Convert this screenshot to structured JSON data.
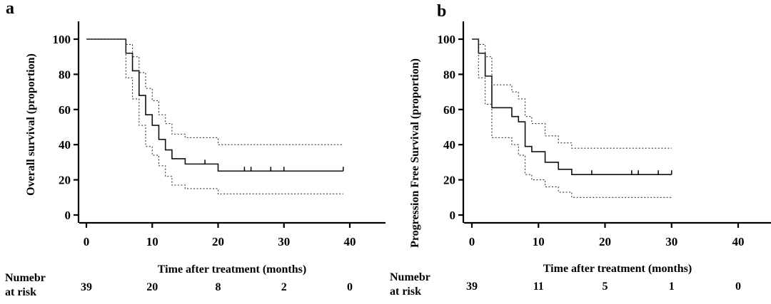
{
  "chart_data": [
    {
      "panel": "a",
      "type": "line",
      "ylabel": "Overall survival (proportion)",
      "xlabel": "Time after treatment (months)",
      "xlim": [
        0,
        40
      ],
      "ylim": [
        0,
        100
      ],
      "xticks": [
        0,
        10,
        20,
        30,
        40
      ],
      "yticks": [
        0,
        20,
        40,
        60,
        80,
        100
      ],
      "grid": false,
      "series": [
        {
          "role": "estimate",
          "x": [
            0,
            6,
            7,
            8,
            9,
            10,
            11,
            12,
            13,
            15,
            20,
            39
          ],
          "y": [
            100,
            92,
            82,
            68,
            57,
            51,
            43,
            37,
            32,
            29,
            25,
            25
          ],
          "censored_x": [
            18,
            24,
            25,
            28,
            30,
            39
          ]
        },
        {
          "role": "upper_ci",
          "x": [
            0,
            6,
            7,
            8,
            9,
            10,
            11,
            12,
            13,
            15,
            20,
            39
          ],
          "y": [
            100,
            97,
            90,
            81,
            72,
            65,
            57,
            52,
            46,
            44,
            40,
            40
          ]
        },
        {
          "role": "lower_ci",
          "x": [
            0,
            6,
            7,
            8,
            9,
            10,
            11,
            12,
            13,
            15,
            20,
            39
          ],
          "y": [
            100,
            78,
            66,
            51,
            39,
            34,
            28,
            22,
            17,
            15,
            12,
            12
          ]
        }
      ],
      "at_risk": {
        "label_line1": "Numebr",
        "label_line2": "at risk",
        "x": [
          0,
          10,
          20,
          30,
          40
        ],
        "values": [
          "39",
          "20",
          "8",
          "2",
          "0"
        ]
      }
    },
    {
      "panel": "b",
      "type": "line",
      "ylabel": "Progression Free Survival (proportion)",
      "xlabel": "Time after treatment (months)",
      "xlim": [
        0,
        40
      ],
      "ylim": [
        0,
        100
      ],
      "xticks": [
        0,
        10,
        20,
        30,
        40
      ],
      "yticks": [
        0,
        20,
        40,
        60,
        80,
        100
      ],
      "grid": false,
      "series": [
        {
          "role": "estimate",
          "x": [
            0,
            1,
            2,
            3,
            6,
            7,
            8,
            9,
            11,
            13,
            15,
            30
          ],
          "y": [
            100,
            92,
            79,
            61,
            56,
            53,
            39,
            36,
            30,
            26,
            23,
            23
          ],
          "censored_x": [
            18,
            24,
            25,
            28,
            30
          ]
        },
        {
          "role": "upper_ci",
          "x": [
            0,
            1,
            2,
            3,
            6,
            7,
            8,
            9,
            11,
            13,
            15,
            30
          ],
          "y": [
            100,
            97,
            90,
            74,
            70,
            66,
            56,
            52,
            45,
            41,
            38,
            38
          ]
        },
        {
          "role": "lower_ci",
          "x": [
            0,
            1,
            2,
            3,
            6,
            7,
            8,
            9,
            11,
            13,
            15,
            30
          ],
          "y": [
            100,
            78,
            63,
            44,
            40,
            34,
            23,
            20,
            16,
            13,
            10,
            10
          ]
        }
      ],
      "at_risk": {
        "label_line1": "Numebr",
        "label_line2": "at risk",
        "x": [
          0,
          10,
          20,
          30,
          40
        ],
        "values": [
          "39",
          "11",
          "5",
          "1",
          "0"
        ]
      }
    }
  ]
}
